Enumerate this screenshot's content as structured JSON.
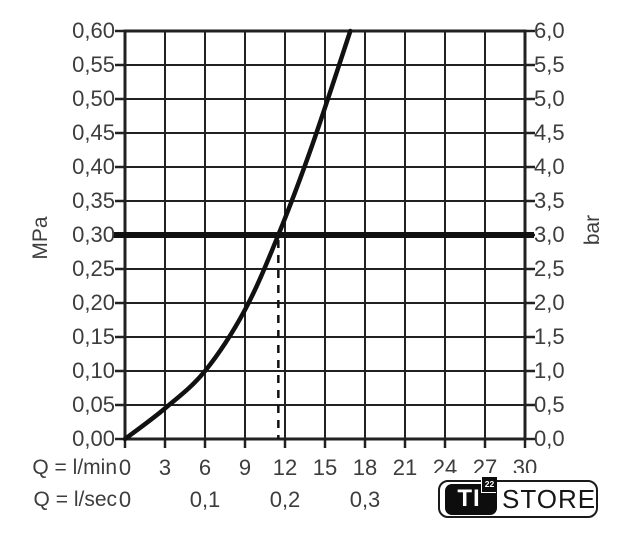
{
  "page": {
    "background_color": "#ffffff",
    "text_color": "#3d3d3d",
    "line_color": "#212121"
  },
  "chart_data": {
    "type": "line",
    "title": "",
    "description": "Flow rate vs pressure performance curve",
    "grid": true,
    "x_axis": {
      "caption_row1": "Q = l/min",
      "caption_row2": "Q = l/sec",
      "range": [
        0,
        30
      ],
      "ticks_lmin": {
        "values": [
          0,
          3,
          6,
          9,
          12,
          15,
          18,
          21,
          24,
          27,
          30
        ],
        "labels": [
          "0",
          "3",
          "6",
          "9",
          "12",
          "15",
          "18",
          "21",
          "24",
          "27",
          "30"
        ]
      },
      "ticks_lsec": {
        "values": [
          0,
          6,
          12,
          18
        ],
        "labels": [
          "0",
          "0,1",
          "0,2",
          "0,3"
        ]
      }
    },
    "y_axis_left": {
      "label": "MPa",
      "range": [
        0,
        0.6
      ],
      "tick_values": [
        0.6,
        0.55,
        0.5,
        0.45,
        0.4,
        0.35,
        0.3,
        0.25,
        0.2,
        0.15,
        0.1,
        0.05,
        0.0
      ],
      "tick_labels": [
        "0,60",
        "0,55",
        "0,50",
        "0,45",
        "0,40",
        "0,35",
        "0,30",
        "0,25",
        "0,20",
        "0,15",
        "0,10",
        "0,05",
        "0,00"
      ]
    },
    "y_axis_right": {
      "label": "bar",
      "tick_labels": [
        "6,0",
        "5,5",
        "5,0",
        "4,5",
        "4,0",
        "3,5",
        "3,0",
        "2,5",
        "2,0",
        "1,5",
        "1,0",
        "0,5",
        "0,0"
      ]
    },
    "series": [
      {
        "name": "flow-pressure-curve",
        "points_lmin_mpa": [
          [
            0,
            0.0
          ],
          [
            3,
            0.045
          ],
          [
            6,
            0.1
          ],
          [
            9,
            0.19
          ],
          [
            11.5,
            0.3
          ],
          [
            14,
            0.43
          ],
          [
            16.9,
            0.6
          ]
        ]
      }
    ],
    "reference_line_mpa": 0.3,
    "reference_line_bar": 3.0,
    "dashed_guide_lmin": 11.5
  },
  "logo": {
    "ti_text": "TI",
    "superscript": "22",
    "store_text": "STORE"
  }
}
